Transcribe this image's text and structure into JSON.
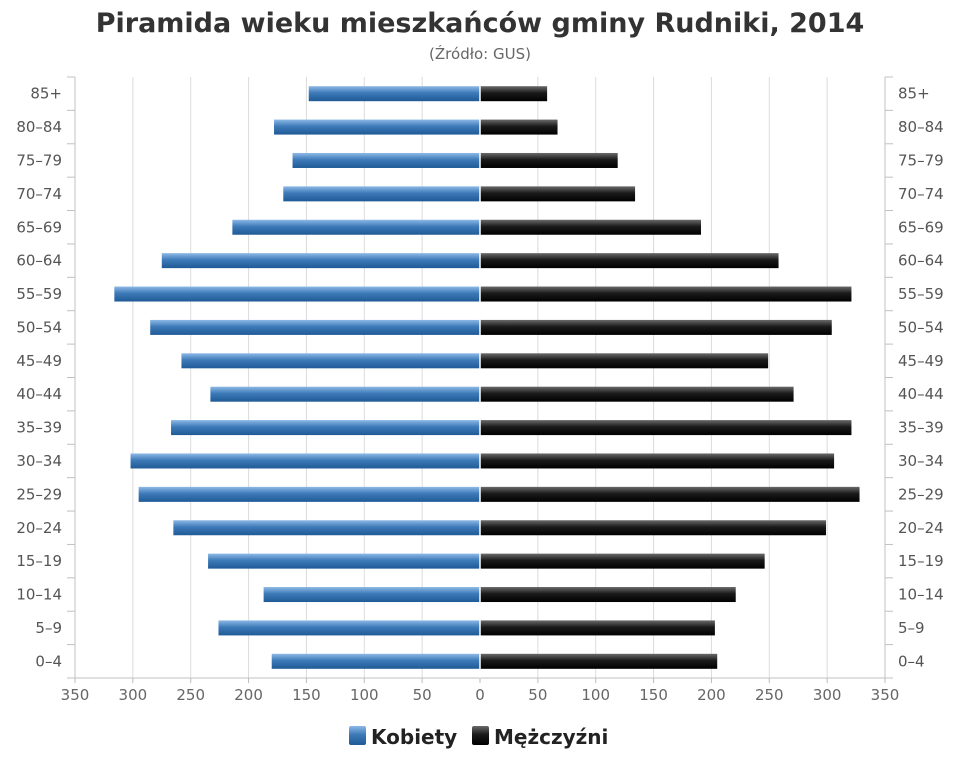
{
  "chart_data": {
    "type": "bar",
    "orientation": "horizontal",
    "title": "Piramida wieku mieszkańców gminy Rudniki, 2014",
    "subtitle": "(Źródło: GUS)",
    "categories": [
      "85+",
      "80–84",
      "75–79",
      "70–74",
      "65–69",
      "60–64",
      "55–59",
      "50–54",
      "45–49",
      "40–44",
      "35–39",
      "30–34",
      "25–29",
      "20–24",
      "15–19",
      "10–14",
      "5–9",
      "0–4"
    ],
    "series": [
      {
        "name": "Kobiety",
        "color": "#3d7ab8",
        "side": "left",
        "values": [
          148,
          178,
          162,
          170,
          214,
          275,
          316,
          285,
          258,
          233,
          267,
          302,
          295,
          265,
          235,
          187,
          226,
          180
        ]
      },
      {
        "name": "Mężczyźni",
        "color": "#1a1a1a",
        "side": "right",
        "values": [
          58,
          67,
          119,
          134,
          191,
          258,
          321,
          304,
          249,
          271,
          321,
          306,
          328,
          299,
          246,
          221,
          203,
          205
        ]
      }
    ],
    "x_ticks": [
      "350",
      "300",
      "250",
      "200",
      "150",
      "100",
      "50",
      "0",
      "50",
      "100",
      "150",
      "200",
      "250",
      "300",
      "350"
    ],
    "xlim": [
      -350,
      350
    ],
    "grid": true,
    "legend_position": "bottom-center"
  }
}
